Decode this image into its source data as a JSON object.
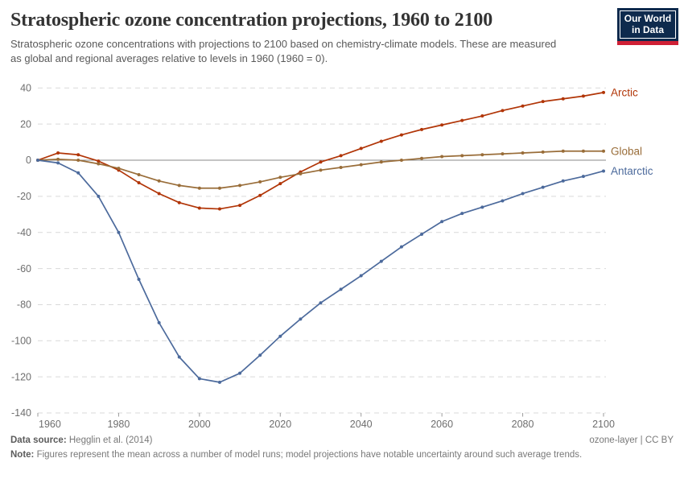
{
  "header": {
    "title": "Stratospheric ozone concentration projections, 1960 to 2100",
    "subtitle": "Stratospheric ozone concentrations with projections to 2100 based on chemistry-climate models. These are measured as global and regional averages relative to levels in 1960 (1960 = 0)."
  },
  "logo": {
    "line1": "Our World",
    "line2": "in Data",
    "bg_color": "#0e2a4d",
    "bar_color": "#cf2035"
  },
  "chart_data": {
    "type": "line",
    "title": "Stratospheric ozone concentration projections, 1960 to 2100",
    "xlabel": "",
    "ylabel": "",
    "x": [
      1960,
      1965,
      1970,
      1975,
      1980,
      1985,
      1990,
      1995,
      2000,
      2005,
      2010,
      2015,
      2020,
      2025,
      2030,
      2035,
      2040,
      2045,
      2050,
      2055,
      2060,
      2065,
      2070,
      2075,
      2080,
      2085,
      2090,
      2095,
      2100
    ],
    "series": [
      {
        "name": "Arctic",
        "color": "#b13507",
        "values": [
          0,
          4,
          3,
          -0.5,
          -5.5,
          -12.5,
          -18.5,
          -23.5,
          -26.5,
          -27,
          -25,
          -19.5,
          -13,
          -6.5,
          -1,
          2.5,
          6.5,
          10.5,
          14,
          17,
          19.5,
          22,
          24.5,
          27.5,
          30,
          32.5,
          34,
          35.5,
          37.5
        ]
      },
      {
        "name": "Global",
        "color": "#996d39",
        "values": [
          0,
          0.5,
          0,
          -2,
          -4.5,
          -8,
          -11.5,
          -14,
          -15.5,
          -15.5,
          -14,
          -12,
          -9.5,
          -7.5,
          -5.5,
          -4,
          -2.5,
          -1,
          0,
          1,
          2,
          2.5,
          3,
          3.5,
          4,
          4.5,
          5,
          5,
          5
        ]
      },
      {
        "name": "Antarctic",
        "color": "#4c6a9c",
        "values": [
          0,
          -1.5,
          -7,
          -20,
          -40,
          -66,
          -90,
          -109,
          -121,
          -123,
          -118,
          -108,
          -97.5,
          -88,
          -79,
          -71.5,
          -64,
          -56,
          -48,
          -41,
          -34,
          -29.5,
          -26,
          -22.5,
          -18.5,
          -15,
          -11.5,
          -9,
          -6
        ]
      }
    ],
    "ylim": [
      -140,
      40
    ],
    "yticks": [
      40,
      20,
      0,
      -20,
      -40,
      -60,
      -80,
      -100,
      -120,
      -140
    ],
    "xticks": [
      1960,
      1980,
      2000,
      2020,
      2040,
      2060,
      2080,
      2100
    ],
    "grid": "horizontal-dashed",
    "zero_line": true,
    "legend_position": "end-of-line-labels"
  },
  "axis": {
    "label_color": "#6e6e6e",
    "grid_color": "#d9d9d9",
    "zero_line_color": "#8a8a8a",
    "tick_color": "#9a9a9a"
  },
  "footer": {
    "datasource_label": "Data source:",
    "datasource_value": " Hegglin et al. (2014)",
    "license": "ozone-layer | CC BY",
    "note_label": "Note:",
    "note_value": " Figures represent the mean across a number of model runs; model projections have notable uncertainty around such average trends."
  }
}
